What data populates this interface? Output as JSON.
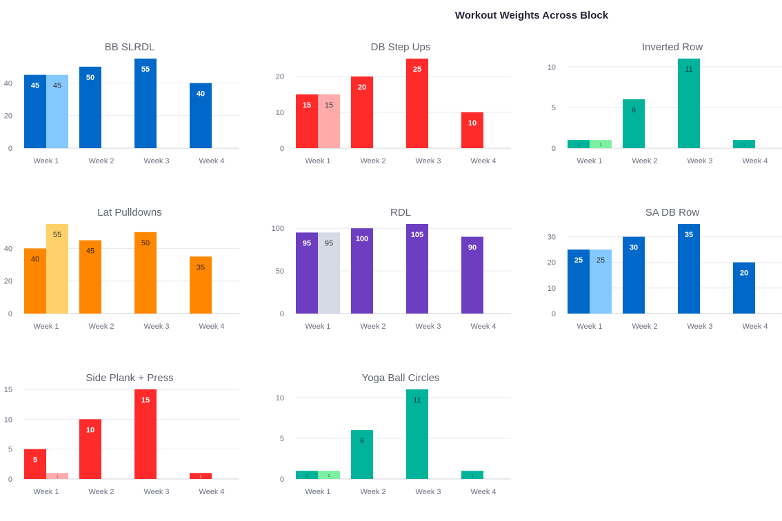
{
  "title": "Workout Weights Across Block",
  "chart_data": [
    {
      "type": "bar",
      "title": "BB SLRDL",
      "categories": [
        "Week 1",
        "Week 2",
        "Week 3",
        "Week 4"
      ],
      "ylim": [
        0,
        55
      ],
      "yticks": [
        0,
        20,
        40
      ],
      "color": "#0068c9",
      "secondary_color": "#83c9ff",
      "series": [
        {
          "values": [
            45,
            50,
            55,
            40
          ]
        },
        {
          "values": [
            45,
            null,
            null,
            null
          ]
        }
      ]
    },
    {
      "type": "bar",
      "title": "DB Step Ups",
      "categories": [
        "Week 1",
        "Week 2",
        "Week 3",
        "Week 4"
      ],
      "ylim": [
        0,
        25
      ],
      "yticks": [
        0,
        10,
        20
      ],
      "color": "#ff2b2b",
      "secondary_color": "#ffabab",
      "series": [
        {
          "values": [
            15,
            20,
            25,
            10
          ]
        },
        {
          "values": [
            15,
            null,
            null,
            null
          ]
        }
      ]
    },
    {
      "type": "bar",
      "title": "Inverted Row",
      "categories": [
        "Week 1",
        "Week 2",
        "Week 3",
        "Week 4"
      ],
      "ylim": [
        0,
        11
      ],
      "yticks": [
        0,
        5,
        10
      ],
      "color": "#00b39a",
      "secondary_color": "#7defa1",
      "series": [
        {
          "values": [
            1,
            6,
            11,
            1
          ]
        },
        {
          "values": [
            1,
            null,
            null,
            null
          ]
        }
      ]
    },
    {
      "type": "bar",
      "title": "Lat Pulldowns",
      "categories": [
        "Week 1",
        "Week 2",
        "Week 3",
        "Week 4"
      ],
      "ylim": [
        0,
        55
      ],
      "yticks": [
        0,
        20,
        40
      ],
      "color": "#ff8700",
      "secondary_color": "#ffd16a",
      "series": [
        {
          "values": [
            40,
            45,
            50,
            35
          ]
        },
        {
          "values": [
            55,
            null,
            null,
            null
          ]
        }
      ]
    },
    {
      "type": "bar",
      "title": "RDL",
      "categories": [
        "Week 1",
        "Week 2",
        "Week 3",
        "Week 4"
      ],
      "ylim": [
        0,
        105
      ],
      "yticks": [
        0,
        50,
        100
      ],
      "color": "#6d3fc0",
      "secondary_color": "#d5dae5",
      "series": [
        {
          "values": [
            95,
            100,
            105,
            90
          ]
        },
        {
          "values": [
            95,
            null,
            null,
            null
          ]
        }
      ]
    },
    {
      "type": "bar",
      "title": "SA DB Row",
      "categories": [
        "Week 1",
        "Week 2",
        "Week 3",
        "Week 4"
      ],
      "ylim": [
        0,
        35
      ],
      "yticks": [
        0,
        10,
        20,
        30
      ],
      "color": "#0068c9",
      "secondary_color": "#83c9ff",
      "series": [
        {
          "values": [
            25,
            30,
            35,
            20
          ]
        },
        {
          "values": [
            25,
            null,
            null,
            null
          ]
        }
      ]
    },
    {
      "type": "bar",
      "title": "Side Plank + Press",
      "categories": [
        "Week 1",
        "Week 2",
        "Week 3",
        "Week 4"
      ],
      "ylim": [
        0,
        15
      ],
      "yticks": [
        0,
        5,
        10,
        15
      ],
      "color": "#ff2b2b",
      "secondary_color": "#ffabab",
      "series": [
        {
          "values": [
            5,
            10,
            15,
            1
          ]
        },
        {
          "values": [
            1,
            null,
            null,
            null
          ]
        }
      ]
    },
    {
      "type": "bar",
      "title": "Yoga Ball Circles",
      "categories": [
        "Week 1",
        "Week 2",
        "Week 3",
        "Week 4"
      ],
      "ylim": [
        0,
        11
      ],
      "yticks": [
        0,
        5,
        10
      ],
      "color": "#00b39a",
      "secondary_color": "#7defa1",
      "series": [
        {
          "values": [
            1,
            6,
            11,
            1
          ]
        },
        {
          "values": [
            1,
            null,
            null,
            null
          ]
        }
      ]
    }
  ]
}
